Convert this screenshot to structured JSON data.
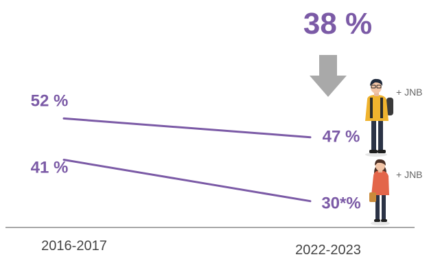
{
  "headline": "38 %",
  "colors": {
    "line": "#7b5aa6",
    "arrow": "#a9a9a9",
    "axis": "#8c8c8c",
    "tick_text": "#444444",
    "annotation": "#666666"
  },
  "chart_data": {
    "type": "line",
    "categories": [
      "2016-2017",
      "2022-2023"
    ],
    "ylim": [
      20,
      60
    ],
    "series": [
      {
        "values": [
          52,
          47
        ],
        "labels": [
          "52 %",
          "47 %"
        ],
        "annotation": "+ JNB",
        "icon": "boy-student-icon"
      },
      {
        "values": [
          41,
          30
        ],
        "labels": [
          "41 %",
          "30*%"
        ],
        "annotation": "+ JNB",
        "icon": "girl-student-icon"
      }
    ],
    "grid": false
  }
}
